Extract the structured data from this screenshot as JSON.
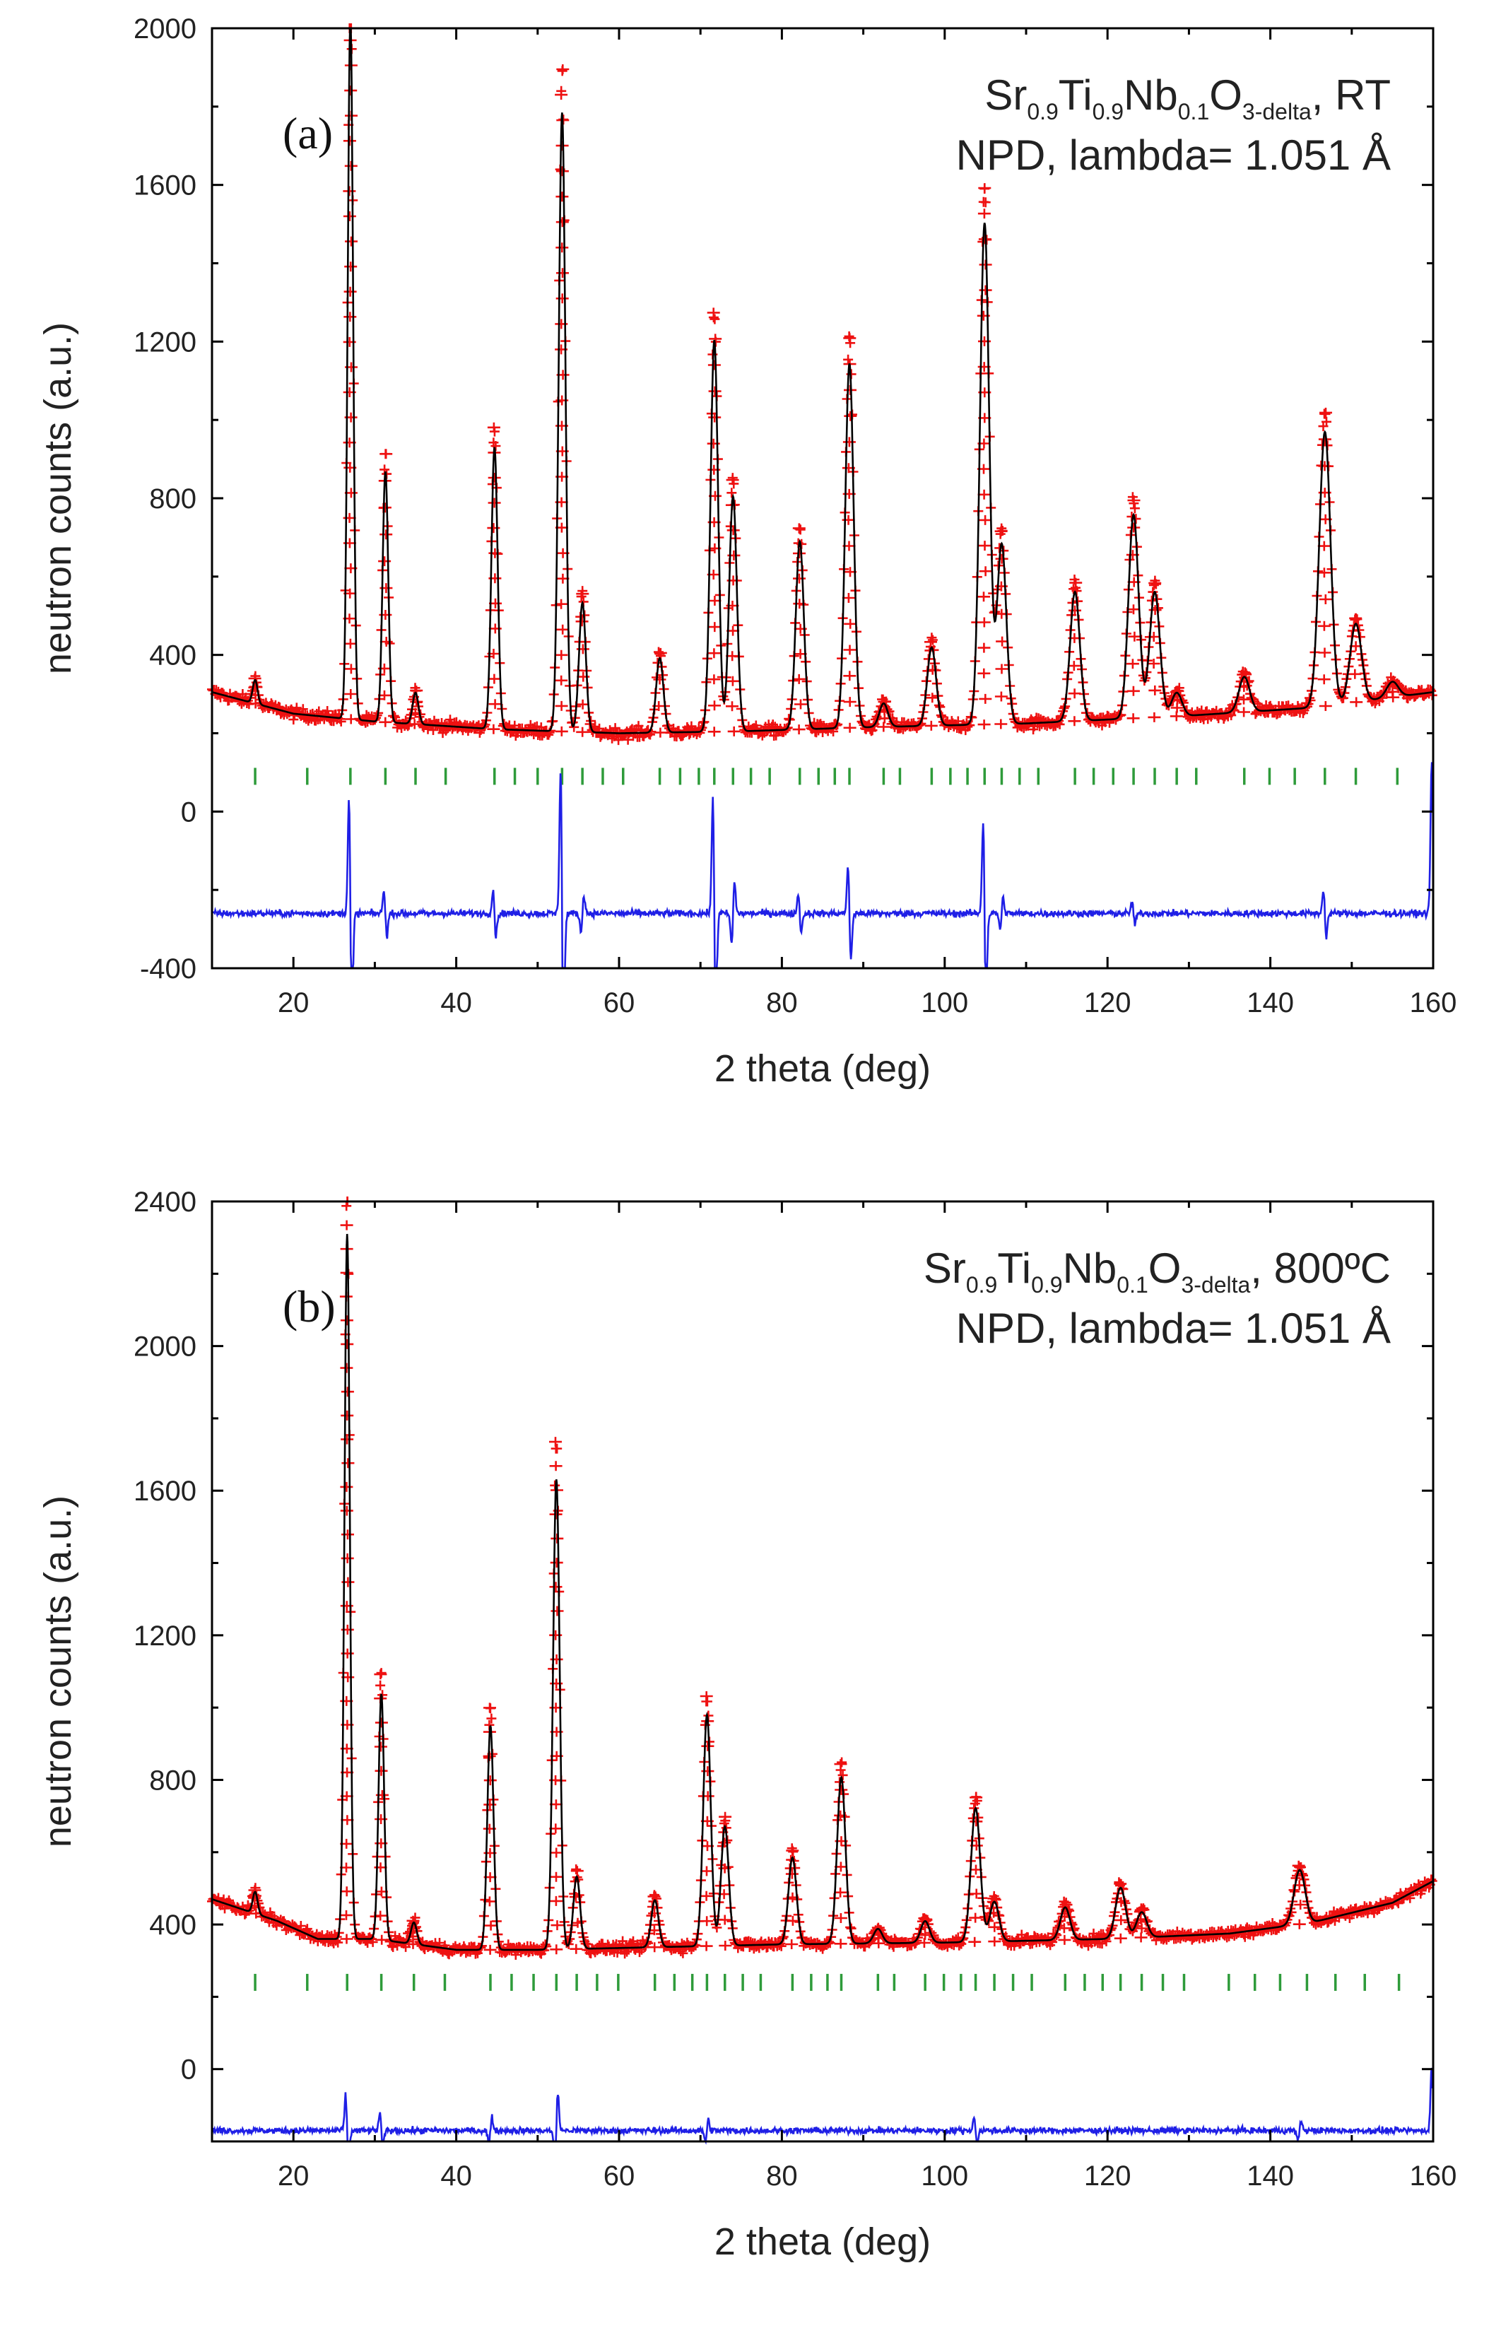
{
  "chart_data": [
    {
      "type": "line",
      "panel_label": "(a)",
      "title_parts": [
        {
          "text": "Sr",
          "sub": false
        },
        {
          "text": "0.9",
          "sub": true
        },
        {
          "text": "Ti",
          "sub": false
        },
        {
          "text": "0.9",
          "sub": true
        },
        {
          "text": "Nb",
          "sub": false
        },
        {
          "text": "0.1",
          "sub": true
        },
        {
          "text": "O",
          "sub": false
        },
        {
          "text": "3-delta",
          "sub": true
        },
        {
          "text": ", RT",
          "sub": false
        }
      ],
      "subtitle": "NPD, lambda= 1.051 Å",
      "xlabel": "2 theta (deg)",
      "ylabel": "neutron counts (a.u.)",
      "xlim": [
        10,
        160
      ],
      "ylim": [
        -400,
        2000
      ],
      "xticks": [
        20,
        40,
        60,
        80,
        100,
        120,
        140,
        160
      ],
      "yticks": [
        -400,
        0,
        400,
        800,
        1200,
        1600,
        2000
      ],
      "background": [
        [
          10,
          305
        ],
        [
          20,
          250
        ],
        [
          30,
          230
        ],
        [
          45,
          210
        ],
        [
          60,
          200
        ],
        [
          75,
          205
        ],
        [
          90,
          215
        ],
        [
          110,
          225
        ],
        [
          130,
          245
        ],
        [
          145,
          265
        ],
        [
          160,
          305
        ]
      ],
      "peaks": [
        [
          15.3,
          60
        ],
        [
          27.0,
          1800
        ],
        [
          31.3,
          640
        ],
        [
          35.0,
          80
        ],
        [
          44.7,
          720
        ],
        [
          53.0,
          1580
        ],
        [
          55.5,
          330
        ],
        [
          65.0,
          190
        ],
        [
          71.7,
          1000
        ],
        [
          74.0,
          600
        ],
        [
          82.2,
          480
        ],
        [
          88.3,
          930
        ],
        [
          92.5,
          60
        ],
        [
          98.4,
          200
        ],
        [
          104.9,
          1280
        ],
        [
          107.0,
          460
        ],
        [
          116.0,
          330
        ],
        [
          123.2,
          520
        ],
        [
          125.8,
          320
        ],
        [
          128.5,
          60
        ],
        [
          136.8,
          90
        ],
        [
          146.7,
          700
        ],
        [
          150.5,
          200
        ],
        [
          155,
          40
        ]
      ],
      "observed_scale": 1.07,
      "diff_offset": -260,
      "diff_spikes": [
        [
          27.0,
          -300
        ],
        [
          31.3,
          -60
        ],
        [
          44.7,
          -60
        ],
        [
          53.0,
          -380
        ],
        [
          55.5,
          50
        ],
        [
          71.7,
          -300
        ],
        [
          74.0,
          80
        ],
        [
          82.2,
          -50
        ],
        [
          88.3,
          -120
        ],
        [
          104.9,
          -240
        ],
        [
          107.0,
          40
        ],
        [
          123.2,
          -30
        ],
        [
          146.7,
          -60
        ],
        [
          160,
          -400
        ]
      ],
      "bragg_y": 90,
      "bragg_positions": [
        15.3,
        21.7,
        27.0,
        31.3,
        35.0,
        38.7,
        44.7,
        47.2,
        50.0,
        53.0,
        55.5,
        58.0,
        60.5,
        65.0,
        67.5,
        69.8,
        71.7,
        74.0,
        76.2,
        78.5,
        82.2,
        84.5,
        86.5,
        88.3,
        92.5,
        94.5,
        98.4,
        100.7,
        102.8,
        104.9,
        107.0,
        109.2,
        111.5,
        116.0,
        118.3,
        120.7,
        123.2,
        125.8,
        128.5,
        130.9,
        136.8,
        139.9,
        143.0,
        146.7,
        150.5,
        155.6
      ],
      "series_colors": {
        "observed": "#ee1111",
        "calculated": "#000000",
        "difference": "#1f1fe6",
        "bragg": "#2e9b3a"
      }
    },
    {
      "type": "line",
      "panel_label": "(b)",
      "title_parts": [
        {
          "text": "Sr",
          "sub": false
        },
        {
          "text": "0.9",
          "sub": true
        },
        {
          "text": "Ti",
          "sub": false
        },
        {
          "text": "0.9",
          "sub": true
        },
        {
          "text": "Nb",
          "sub": false
        },
        {
          "text": "0.1",
          "sub": true
        },
        {
          "text": "O",
          "sub": false
        },
        {
          "text": "3-delta",
          "sub": true
        },
        {
          "text": ", 800ºC",
          "sub": false
        }
      ],
      "subtitle": "NPD, lambda= 1.051 Å",
      "xlabel": "2 theta (deg)",
      "ylabel": "neutron counts (a.u.)",
      "xlim": [
        10,
        160
      ],
      "ylim": [
        -200,
        2400
      ],
      "xticks": [
        20,
        40,
        60,
        80,
        100,
        120,
        140,
        160
      ],
      "yticks": [
        0,
        400,
        800,
        1200,
        1600,
        2000,
        2400
      ],
      "background": [
        [
          10,
          470
        ],
        [
          18,
          410
        ],
        [
          23,
          360
        ],
        [
          30,
          360
        ],
        [
          40,
          330
        ],
        [
          50,
          330
        ],
        [
          60,
          335
        ],
        [
          80,
          345
        ],
        [
          100,
          350
        ],
        [
          120,
          360
        ],
        [
          135,
          375
        ],
        [
          145,
          405
        ],
        [
          155,
          460
        ],
        [
          160,
          520
        ]
      ],
      "peaks": [
        [
          15.3,
          60
        ],
        [
          26.6,
          1950
        ],
        [
          30.8,
          680
        ],
        [
          34.8,
          60
        ],
        [
          44.2,
          620
        ],
        [
          52.3,
          1300
        ],
        [
          54.8,
          200
        ],
        [
          64.4,
          130
        ],
        [
          70.8,
          640
        ],
        [
          73.0,
          330
        ],
        [
          81.3,
          240
        ],
        [
          87.3,
          460
        ],
        [
          91.8,
          40
        ],
        [
          97.6,
          60
        ],
        [
          103.8,
          370
        ],
        [
          106.1,
          110
        ],
        [
          114.8,
          90
        ],
        [
          121.6,
          140
        ],
        [
          124.2,
          70
        ],
        [
          143.6,
          150
        ]
      ],
      "observed_scale": 1.08,
      "diff_offset": -170,
      "diff_spikes": [
        [
          26.6,
          -100
        ],
        [
          30.8,
          -50
        ],
        [
          44.2,
          40
        ],
        [
          52.3,
          110
        ],
        [
          70.8,
          30
        ],
        [
          103.8,
          -40
        ],
        [
          143.6,
          30
        ],
        [
          160,
          -180
        ]
      ],
      "bragg_y": 240,
      "bragg_positions": [
        15.3,
        21.7,
        26.6,
        30.8,
        34.8,
        38.6,
        44.2,
        46.8,
        49.5,
        52.3,
        54.8,
        57.3,
        59.9,
        64.4,
        66.8,
        69.0,
        70.8,
        73.0,
        75.2,
        77.4,
        81.3,
        83.6,
        85.6,
        87.3,
        91.8,
        93.8,
        97.6,
        99.9,
        102.0,
        103.8,
        106.1,
        108.4,
        110.7,
        114.8,
        117.2,
        119.4,
        121.6,
        124.2,
        126.8,
        129.4,
        134.9,
        138.1,
        141.2,
        144.5,
        148.0,
        151.6,
        155.8
      ],
      "series_colors": {
        "observed": "#ee1111",
        "calculated": "#000000",
        "difference": "#1f1fe6",
        "bragg": "#2e9b3a"
      }
    }
  ]
}
